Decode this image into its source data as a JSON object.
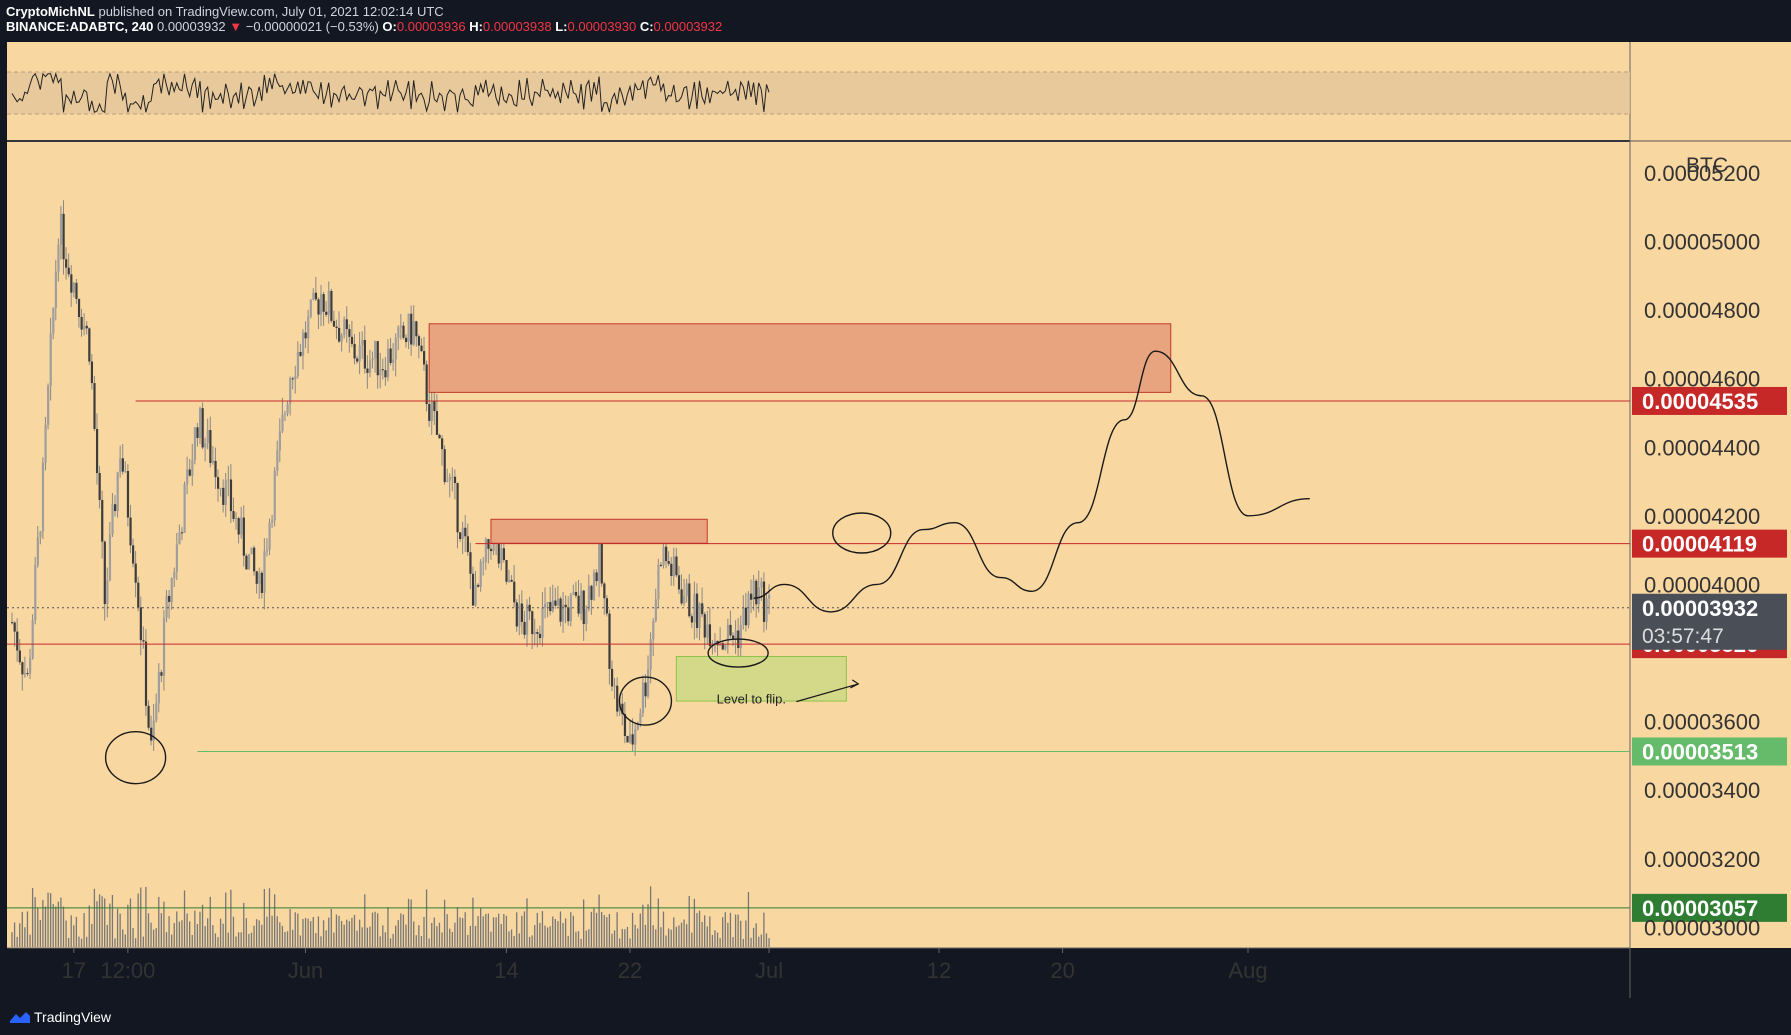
{
  "header": {
    "author": "CryptoMichNL",
    "published": "published on TradingView.com, July 01, 2021 12:02:14 UTC",
    "symbol": "BINANCE:ADABTC, 240",
    "last": "0.00003932",
    "arrow": "▼",
    "change": "−0.00000021 (−0.53%)",
    "o_label": "O:",
    "o": "0.00003936",
    "h_label": "H:",
    "h": "0.00003938",
    "l_label": "L:",
    "l": "0.00003930",
    "c_label": "C:",
    "c": "0.00003932"
  },
  "footer": {
    "brand": "TradingView"
  },
  "colors": {
    "background": "#f9d7a1",
    "frame": "#131722",
    "level_red": "#c62828",
    "level_green": "#2e7d32",
    "level_green_light": "#66bb6a",
    "current_price_bg": "#4a4e57",
    "supply_zone": "#e8a47f",
    "demand_zone": "#d4d98a",
    "candles": "#3c3c3c"
  },
  "chart_data": {
    "type": "candlestick",
    "unit_label": "BTC",
    "ylim": [
      2.94e-05,
      5.29e-05
    ],
    "y_ticks": [
      "0.00003000",
      "0.00003200",
      "0.00003400",
      "0.00003600",
      "0.00004000",
      "0.00004200",
      "0.00004400",
      "0.00004600",
      "0.00004800",
      "0.00005000",
      "0.00005200"
    ],
    "y_tick_values": [
      3e-05,
      3.2e-05,
      3.4e-05,
      3.6e-05,
      4e-05,
      4.2e-05,
      4.4e-05,
      4.6e-05,
      4.8e-05,
      5e-05,
      5.2e-05
    ],
    "x_ticks": [
      {
        "label": "17",
        "date": "2021-05-17"
      },
      {
        "label": "12:00",
        "date": "2021-05-20T12:00"
      },
      {
        "label": "Jun",
        "date": "2021-06-01"
      },
      {
        "label": "14",
        "date": "2021-06-14"
      },
      {
        "label": "22",
        "date": "2021-06-22"
      },
      {
        "label": "Jul",
        "date": "2021-07-01"
      },
      {
        "label": "12",
        "date": "2021-07-12"
      },
      {
        "label": "20",
        "date": "2021-07-20"
      },
      {
        "label": "Aug",
        "date": "2021-08-01"
      }
    ],
    "price_path": [
      [
        "2021-05-13",
        3.89e-05
      ],
      [
        "2021-05-14",
        3.72e-05
      ],
      [
        "2021-05-15",
        4.3e-05
      ],
      [
        "2021-05-16",
        5.05e-05
      ],
      [
        "2021-05-17",
        4.88e-05
      ],
      [
        "2021-05-18",
        4.7e-05
      ],
      [
        "2021-05-19",
        3.95e-05
      ],
      [
        "2021-05-20",
        4.4e-05
      ],
      [
        "2021-05-21",
        4.05e-05
      ],
      [
        "2021-05-22",
        3.51e-05
      ],
      [
        "2021-05-23",
        3.92e-05
      ],
      [
        "2021-05-25",
        4.48e-05
      ],
      [
        "2021-05-27",
        4.25e-05
      ],
      [
        "2021-05-29",
        3.98e-05
      ],
      [
        "2021-05-31",
        4.62e-05
      ],
      [
        "2021-06-02",
        4.85e-05
      ],
      [
        "2021-06-04",
        4.68e-05
      ],
      [
        "2021-06-06",
        4.65e-05
      ],
      [
        "2021-06-08",
        4.75e-05
      ],
      [
        "2021-06-09",
        4.52e-05
      ],
      [
        "2021-06-11",
        4.18e-05
      ],
      [
        "2021-06-12",
        3.95e-05
      ],
      [
        "2021-06-13",
        4.14e-05
      ],
      [
        "2021-06-15",
        3.88e-05
      ],
      [
        "2021-06-17",
        3.92e-05
      ],
      [
        "2021-06-19",
        3.94e-05
      ],
      [
        "2021-06-20",
        4.07e-05
      ],
      [
        "2021-06-21",
        3.68e-05
      ],
      [
        "2021-06-22",
        3.52e-05
      ],
      [
        "2021-06-23",
        3.72e-05
      ],
      [
        "2021-06-24",
        4.1e-05
      ],
      [
        "2021-06-26",
        3.93e-05
      ],
      [
        "2021-06-28",
        3.84e-05
      ],
      [
        "2021-06-29",
        3.86e-05
      ],
      [
        "2021-06-30",
        3.98e-05
      ],
      [
        "2021-07-01",
        3.93e-05
      ]
    ],
    "price_lines": [
      {
        "label": "0.00004535",
        "value": 4.535e-05,
        "color": "red"
      },
      {
        "label": "0.00004119",
        "value": 4.119e-05,
        "color": "red"
      },
      {
        "label": "0.00003826",
        "value": 3.826e-05,
        "color": "red"
      },
      {
        "label": "0.00003513",
        "value": 3.513e-05,
        "color": "green_light"
      },
      {
        "label": "0.00003057",
        "value": 3.057e-05,
        "color": "green"
      }
    ],
    "current_price": {
      "label": "0.00003932",
      "value": 3.932e-05,
      "countdown": "03:57:47"
    },
    "zones": [
      {
        "kind": "supply",
        "from": "2021-06-09",
        "to": "2021-07-27",
        "top": 4.76e-05,
        "bottom": 4.56e-05
      },
      {
        "kind": "supply",
        "from": "2021-06-13",
        "to": "2021-06-27",
        "top": 4.19e-05,
        "bottom": 4.12e-05
      },
      {
        "kind": "demand",
        "from": "2021-06-25",
        "to": "2021-07-06",
        "top": 3.79e-05,
        "bottom": 3.66e-05
      }
    ],
    "annotations": [
      {
        "text": "Level to flip."
      }
    ],
    "forecast_path": [
      [
        "2021-06-30",
        3.96e-05
      ],
      [
        "2021-07-02",
        4e-05
      ],
      [
        "2021-07-05",
        3.92e-05
      ],
      [
        "2021-07-08",
        4e-05
      ],
      [
        "2021-07-11",
        4.16e-05
      ],
      [
        "2021-07-13",
        4.18e-05
      ],
      [
        "2021-07-16",
        4.02e-05
      ],
      [
        "2021-07-18",
        3.98e-05
      ],
      [
        "2021-07-21",
        4.18e-05
      ],
      [
        "2021-07-24",
        4.48e-05
      ],
      [
        "2021-07-26",
        4.68e-05
      ],
      [
        "2021-07-29",
        4.55e-05
      ],
      [
        "2021-08-01",
        4.2e-05
      ],
      [
        "2021-08-05",
        4.25e-05
      ]
    ]
  }
}
